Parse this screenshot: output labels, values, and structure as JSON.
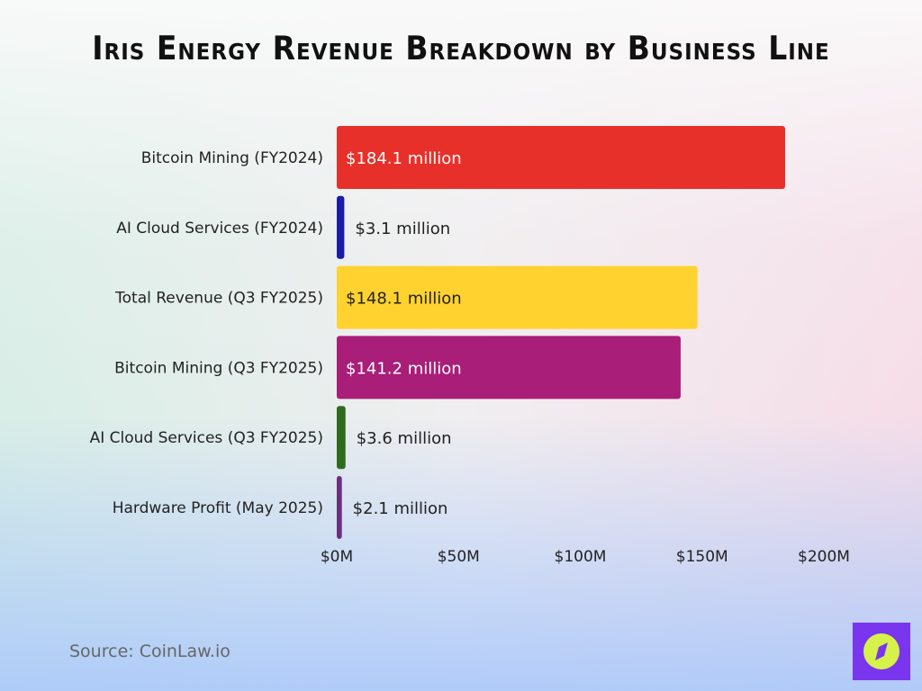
{
  "chart_data": {
    "type": "bar",
    "orientation": "horizontal",
    "title": "Iris Energy Revenue Breakdown by Business Line",
    "categories": [
      "Bitcoin Mining (FY2024)",
      "AI Cloud Services (FY2024)",
      "Total Revenue (Q3 FY2025)",
      "Bitcoin Mining (Q3 FY2025)",
      "AI Cloud Services (Q3 FY2025)",
      "Hardware Profit (May 2025)"
    ],
    "values": [
      184.1,
      3.1,
      148.1,
      141.2,
      3.6,
      2.1
    ],
    "data_labels": [
      "$184.1 million",
      "$3.1 million",
      "$148.1 million",
      "$141.2 million",
      "$3.6 million",
      "$2.1 million"
    ],
    "colors": [
      "#e8302a",
      "#1c1ca6",
      "#ffd230",
      "#a81e78",
      "#2f6b1c",
      "#6b2f7c"
    ],
    "xlim": [
      0,
      200
    ],
    "xticks": [
      0,
      50,
      100,
      150,
      200
    ],
    "xtick_labels": [
      "$0M",
      "$50M",
      "$100M",
      "$150M",
      "$200M"
    ],
    "xlabel": "",
    "ylabel": "",
    "grid": false,
    "legend": "none"
  },
  "source": "Source: CoinLaw.io",
  "logo": {
    "icon": "compass-icon",
    "background": "#7a35ee",
    "accent": "#d6f24a"
  }
}
